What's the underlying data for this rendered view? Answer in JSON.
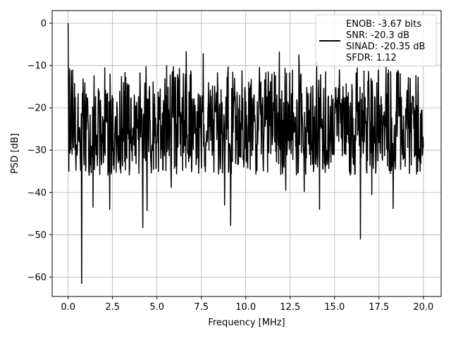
{
  "chart_data": {
    "type": "line",
    "xlabel": "Frequency [MHz]",
    "ylabel": "PSD [dB]",
    "xlim": [
      -0.9,
      21.0
    ],
    "ylim": [
      -64.6,
      3.0
    ],
    "grid": true,
    "xticks": [
      0.0,
      2.5,
      5.0,
      7.5,
      10.0,
      12.5,
      15.0,
      17.5,
      20.0
    ],
    "xtick_labels": [
      "0.0",
      "2.5",
      "5.0",
      "7.5",
      "10.0",
      "12.5",
      "15.0",
      "17.5",
      "20.0"
    ],
    "yticks": [
      0,
      -10,
      -20,
      -30,
      -40,
      -50,
      -60
    ],
    "ytick_labels": [
      "0",
      "−10",
      "−20",
      "−30",
      "−40",
      "−50",
      "−60"
    ],
    "legend_position": "top-right",
    "legend_lines": [
      "ENOB: -3.67 bits",
      "SNR: -20.3 dB",
      "SINAD: -20.35 dB",
      "SFDR: 1.12"
    ],
    "series": [
      {
        "color": "#000000",
        "x_start": 0.0,
        "x_end": 20.0,
        "n_points": 1000,
        "noise_floor_db": -20,
        "peaks": [
          {
            "x": 0.0,
            "y": 0.0
          }
        ],
        "notable_minima": [
          {
            "x": 0.76,
            "y": -61.5
          },
          {
            "x": 1.4,
            "y": -43.5
          },
          {
            "x": 2.35,
            "y": -44
          },
          {
            "x": 4.2,
            "y": -48.3
          },
          {
            "x": 4.45,
            "y": -44.3
          },
          {
            "x": 5.8,
            "y": -38.8
          },
          {
            "x": 8.8,
            "y": -43
          },
          {
            "x": 9.15,
            "y": -47.8
          },
          {
            "x": 12.25,
            "y": -39.5
          },
          {
            "x": 13.3,
            "y": -39.8
          },
          {
            "x": 14.15,
            "y": -44
          },
          {
            "x": 16.45,
            "y": -51
          },
          {
            "x": 17.1,
            "y": -40.5
          },
          {
            "x": 18.3,
            "y": -43.8
          }
        ],
        "notable_maxima": [
          {
            "x": 0.08,
            "y": -10.8
          },
          {
            "x": 6.65,
            "y": -6.7
          },
          {
            "x": 7.6,
            "y": -7.2
          },
          {
            "x": 11.9,
            "y": -6.8
          },
          {
            "x": 13.0,
            "y": -7.5
          },
          {
            "x": 14.0,
            "y": -9.3
          }
        ]
      }
    ]
  }
}
